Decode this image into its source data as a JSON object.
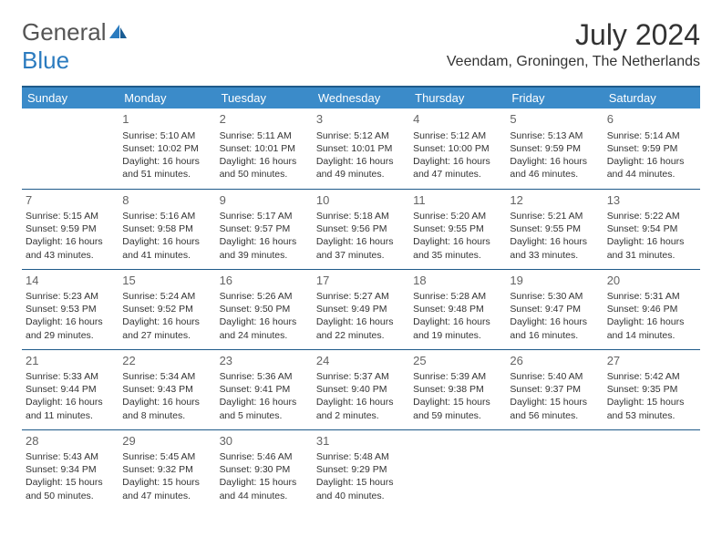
{
  "logo": {
    "gray": "General",
    "blue": "Blue"
  },
  "title": "July 2024",
  "location": "Veendam, Groningen, The Netherlands",
  "day_headers": [
    "Sunday",
    "Monday",
    "Tuesday",
    "Wednesday",
    "Thursday",
    "Friday",
    "Saturday"
  ],
  "colors": {
    "header_bg": "#3b8bc9",
    "header_border": "#1f5a8a",
    "row_border": "#1f5a8a",
    "logo_blue": "#2b7bbf",
    "text": "#333333",
    "daynum": "#646464"
  },
  "weeks": [
    [
      {
        "num": "",
        "sunrise": "",
        "sunset": "",
        "daylight": ""
      },
      {
        "num": "1",
        "sunrise": "Sunrise: 5:10 AM",
        "sunset": "Sunset: 10:02 PM",
        "daylight": "Daylight: 16 hours and 51 minutes."
      },
      {
        "num": "2",
        "sunrise": "Sunrise: 5:11 AM",
        "sunset": "Sunset: 10:01 PM",
        "daylight": "Daylight: 16 hours and 50 minutes."
      },
      {
        "num": "3",
        "sunrise": "Sunrise: 5:12 AM",
        "sunset": "Sunset: 10:01 PM",
        "daylight": "Daylight: 16 hours and 49 minutes."
      },
      {
        "num": "4",
        "sunrise": "Sunrise: 5:12 AM",
        "sunset": "Sunset: 10:00 PM",
        "daylight": "Daylight: 16 hours and 47 minutes."
      },
      {
        "num": "5",
        "sunrise": "Sunrise: 5:13 AM",
        "sunset": "Sunset: 9:59 PM",
        "daylight": "Daylight: 16 hours and 46 minutes."
      },
      {
        "num": "6",
        "sunrise": "Sunrise: 5:14 AM",
        "sunset": "Sunset: 9:59 PM",
        "daylight": "Daylight: 16 hours and 44 minutes."
      }
    ],
    [
      {
        "num": "7",
        "sunrise": "Sunrise: 5:15 AM",
        "sunset": "Sunset: 9:59 PM",
        "daylight": "Daylight: 16 hours and 43 minutes."
      },
      {
        "num": "8",
        "sunrise": "Sunrise: 5:16 AM",
        "sunset": "Sunset: 9:58 PM",
        "daylight": "Daylight: 16 hours and 41 minutes."
      },
      {
        "num": "9",
        "sunrise": "Sunrise: 5:17 AM",
        "sunset": "Sunset: 9:57 PM",
        "daylight": "Daylight: 16 hours and 39 minutes."
      },
      {
        "num": "10",
        "sunrise": "Sunrise: 5:18 AM",
        "sunset": "Sunset: 9:56 PM",
        "daylight": "Daylight: 16 hours and 37 minutes."
      },
      {
        "num": "11",
        "sunrise": "Sunrise: 5:20 AM",
        "sunset": "Sunset: 9:55 PM",
        "daylight": "Daylight: 16 hours and 35 minutes."
      },
      {
        "num": "12",
        "sunrise": "Sunrise: 5:21 AM",
        "sunset": "Sunset: 9:55 PM",
        "daylight": "Daylight: 16 hours and 33 minutes."
      },
      {
        "num": "13",
        "sunrise": "Sunrise: 5:22 AM",
        "sunset": "Sunset: 9:54 PM",
        "daylight": "Daylight: 16 hours and 31 minutes."
      }
    ],
    [
      {
        "num": "14",
        "sunrise": "Sunrise: 5:23 AM",
        "sunset": "Sunset: 9:53 PM",
        "daylight": "Daylight: 16 hours and 29 minutes."
      },
      {
        "num": "15",
        "sunrise": "Sunrise: 5:24 AM",
        "sunset": "Sunset: 9:52 PM",
        "daylight": "Daylight: 16 hours and 27 minutes."
      },
      {
        "num": "16",
        "sunrise": "Sunrise: 5:26 AM",
        "sunset": "Sunset: 9:50 PM",
        "daylight": "Daylight: 16 hours and 24 minutes."
      },
      {
        "num": "17",
        "sunrise": "Sunrise: 5:27 AM",
        "sunset": "Sunset: 9:49 PM",
        "daylight": "Daylight: 16 hours and 22 minutes."
      },
      {
        "num": "18",
        "sunrise": "Sunrise: 5:28 AM",
        "sunset": "Sunset: 9:48 PM",
        "daylight": "Daylight: 16 hours and 19 minutes."
      },
      {
        "num": "19",
        "sunrise": "Sunrise: 5:30 AM",
        "sunset": "Sunset: 9:47 PM",
        "daylight": "Daylight: 16 hours and 16 minutes."
      },
      {
        "num": "20",
        "sunrise": "Sunrise: 5:31 AM",
        "sunset": "Sunset: 9:46 PM",
        "daylight": "Daylight: 16 hours and 14 minutes."
      }
    ],
    [
      {
        "num": "21",
        "sunrise": "Sunrise: 5:33 AM",
        "sunset": "Sunset: 9:44 PM",
        "daylight": "Daylight: 16 hours and 11 minutes."
      },
      {
        "num": "22",
        "sunrise": "Sunrise: 5:34 AM",
        "sunset": "Sunset: 9:43 PM",
        "daylight": "Daylight: 16 hours and 8 minutes."
      },
      {
        "num": "23",
        "sunrise": "Sunrise: 5:36 AM",
        "sunset": "Sunset: 9:41 PM",
        "daylight": "Daylight: 16 hours and 5 minutes."
      },
      {
        "num": "24",
        "sunrise": "Sunrise: 5:37 AM",
        "sunset": "Sunset: 9:40 PM",
        "daylight": "Daylight: 16 hours and 2 minutes."
      },
      {
        "num": "25",
        "sunrise": "Sunrise: 5:39 AM",
        "sunset": "Sunset: 9:38 PM",
        "daylight": "Daylight: 15 hours and 59 minutes."
      },
      {
        "num": "26",
        "sunrise": "Sunrise: 5:40 AM",
        "sunset": "Sunset: 9:37 PM",
        "daylight": "Daylight: 15 hours and 56 minutes."
      },
      {
        "num": "27",
        "sunrise": "Sunrise: 5:42 AM",
        "sunset": "Sunset: 9:35 PM",
        "daylight": "Daylight: 15 hours and 53 minutes."
      }
    ],
    [
      {
        "num": "28",
        "sunrise": "Sunrise: 5:43 AM",
        "sunset": "Sunset: 9:34 PM",
        "daylight": "Daylight: 15 hours and 50 minutes."
      },
      {
        "num": "29",
        "sunrise": "Sunrise: 5:45 AM",
        "sunset": "Sunset: 9:32 PM",
        "daylight": "Daylight: 15 hours and 47 minutes."
      },
      {
        "num": "30",
        "sunrise": "Sunrise: 5:46 AM",
        "sunset": "Sunset: 9:30 PM",
        "daylight": "Daylight: 15 hours and 44 minutes."
      },
      {
        "num": "31",
        "sunrise": "Sunrise: 5:48 AM",
        "sunset": "Sunset: 9:29 PM",
        "daylight": "Daylight: 15 hours and 40 minutes."
      },
      {
        "num": "",
        "sunrise": "",
        "sunset": "",
        "daylight": ""
      },
      {
        "num": "",
        "sunrise": "",
        "sunset": "",
        "daylight": ""
      },
      {
        "num": "",
        "sunrise": "",
        "sunset": "",
        "daylight": ""
      }
    ]
  ]
}
